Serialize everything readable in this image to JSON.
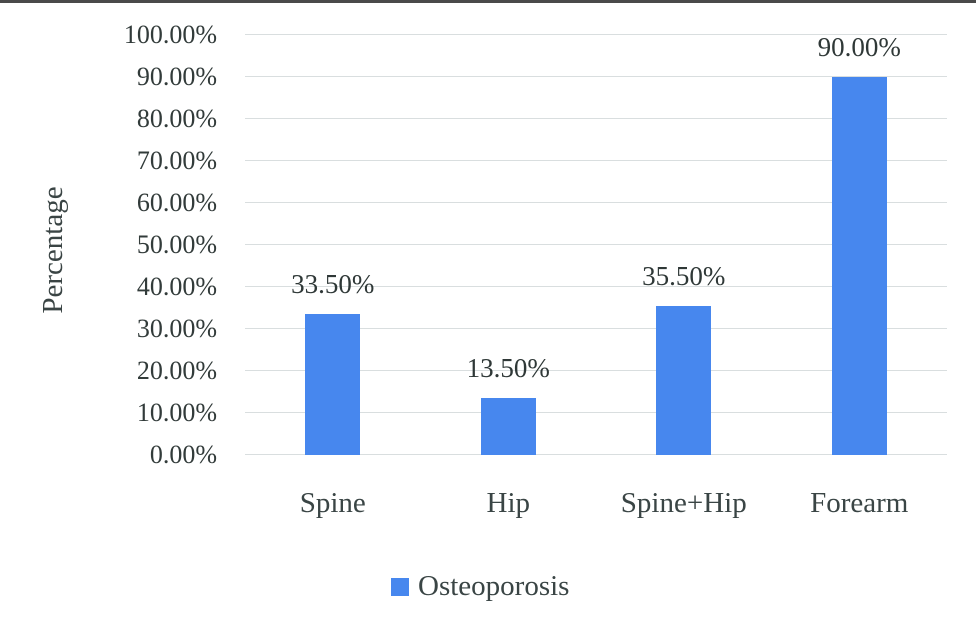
{
  "chart_data": {
    "type": "bar",
    "categories": [
      "Spine",
      "Hip",
      "Spine+Hip",
      "Forearm"
    ],
    "series": [
      {
        "name": "Osteoporosis",
        "values": [
          33.5,
          13.5,
          35.5,
          90.0
        ]
      }
    ],
    "value_labels": [
      "33.50%",
      "13.50%",
      "35.50%",
      "90.00%"
    ],
    "title": "",
    "xlabel": "",
    "ylabel": "Percentage",
    "ylim": [
      0,
      100
    ],
    "ytick_step": 10,
    "ytick_labels": [
      "0.00%",
      "10.00%",
      "20.00%",
      "30.00%",
      "40.00%",
      "50.00%",
      "60.00%",
      "70.00%",
      "80.00%",
      "90.00%",
      "100.00%"
    ],
    "grid": true,
    "legend_position": "bottom",
    "bar_color": "#4787ee"
  },
  "legend": {
    "items": [
      {
        "label": "Osteoporosis",
        "color": "#4787ee"
      }
    ]
  },
  "colors": {
    "bar": "#4787ee",
    "gridline": "#d9dedf",
    "text": "#323b3a",
    "top_border": "#4a4a4a",
    "background": "#ffffff"
  }
}
